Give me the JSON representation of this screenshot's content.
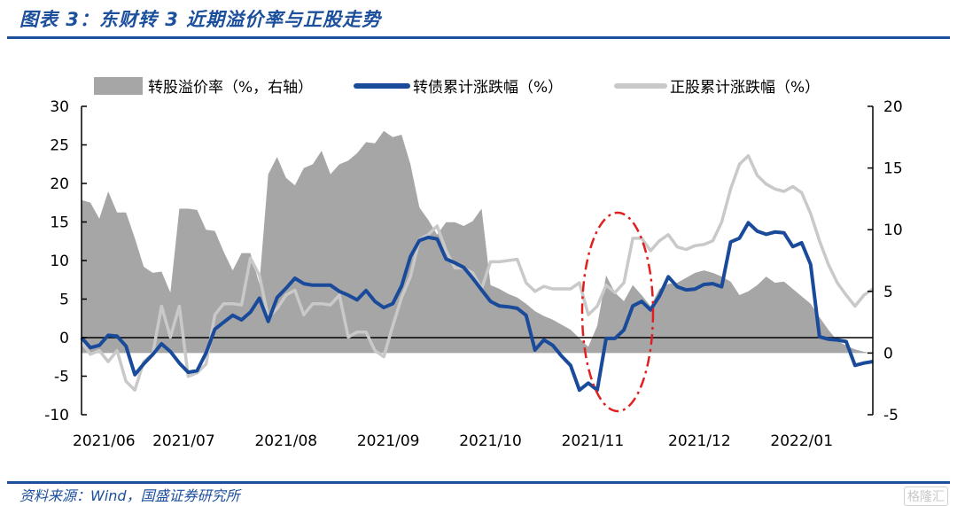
{
  "header": {
    "title": "图表 3：东财转 3 近期溢价率与正股走势"
  },
  "footer": {
    "source": "资料来源：Wind，国盛证券研究所",
    "watermark": "格隆汇"
  },
  "colors": {
    "premium": "#a6a6a6",
    "bond": "#1a4a9a",
    "stock": "#c9c9c9",
    "annotation": "#e02020",
    "accent": "#1c4f9c"
  },
  "chart_data": {
    "type": "line",
    "title": "东财转3近期溢价率与正股走势",
    "x_unit": "trading-day index",
    "index_step": 2,
    "x_range": [
      0,
      178
    ],
    "x_ticks": [
      {
        "label": "2021/06",
        "index": 0
      },
      {
        "label": "2021/07",
        "index": 23
      },
      {
        "label": "2021/08",
        "index": 46
      },
      {
        "label": "2021/09",
        "index": 69
      },
      {
        "label": "2021/10",
        "index": 92
      },
      {
        "label": "2021/11",
        "index": 115
      },
      {
        "label": "2021/12",
        "index": 139
      },
      {
        "label": "2022/01",
        "index": 162
      }
    ],
    "left_axis": {
      "range": [
        -10,
        30
      ],
      "ticks": [
        "30",
        "25",
        "20",
        "15",
        "10",
        "5",
        "0",
        "-5",
        "-10"
      ]
    },
    "right_axis": {
      "range": [
        -5,
        20
      ],
      "ticks": [
        "20",
        "15",
        "10",
        "5",
        "0",
        "-5"
      ]
    },
    "legend": {
      "placement": "top",
      "entries": [
        "转股溢价率（%，右轴）",
        "转债累计涨跌幅（%）",
        "正股累计涨跌幅（%）"
      ]
    },
    "series": [
      {
        "name": "转股溢价率（%，右轴）",
        "type": "area",
        "axis": "right",
        "values": [
          12.4,
          12.2,
          10.9,
          13.1,
          11.4,
          11.4,
          9.3,
          7.0,
          6.5,
          6.6,
          4.9,
          11.7,
          11.7,
          11.6,
          10.0,
          9.9,
          8.2,
          6.7,
          8.1,
          8.1,
          5.6,
          14.5,
          15.9,
          14.2,
          13.6,
          15.0,
          15.3,
          16.4,
          14.5,
          15.3,
          15.6,
          16.2,
          17.1,
          17.0,
          18.0,
          17.5,
          17.7,
          15.3,
          11.8,
          10.8,
          9.6,
          10.6,
          10.6,
          10.3,
          10.7,
          11.7,
          5.5,
          5.2,
          4.8,
          4.5,
          4.0,
          3.4,
          3.0,
          2.7,
          2.3,
          1.9,
          1.2,
          0.5,
          2.2,
          6.3,
          4.9,
          4.2,
          5.5,
          4.7,
          3.8,
          5.2,
          5.6,
          5.7,
          6.1,
          6.5,
          6.7,
          6.5,
          6.2,
          5.8,
          4.7,
          5.0,
          5.5,
          6.2,
          5.7,
          5.8,
          5.2,
          4.6,
          4.0,
          2.9,
          1.9,
          1.0,
          0.6,
          0.3,
          0.1,
          0.0
        ]
      },
      {
        "name": "转债累计涨跌幅（%）",
        "type": "line",
        "axis": "left",
        "values": [
          0,
          -1.3,
          -1.0,
          0.3,
          0.2,
          -1.1,
          -4.8,
          -3.4,
          -2.2,
          -0.8,
          -1.8,
          -3.3,
          -4.5,
          -4.3,
          -2.0,
          1.1,
          2.0,
          2.9,
          2.3,
          3.3,
          5.1,
          2.1,
          5.2,
          6.4,
          7.7,
          7.0,
          6.8,
          6.8,
          6.8,
          6.0,
          5.5,
          4.9,
          6.1,
          4.7,
          3.9,
          4.4,
          6.7,
          10.5,
          12.6,
          13.0,
          12.8,
          10.2,
          9.7,
          9.1,
          7.7,
          6.2,
          4.7,
          4.1,
          4.0,
          3.8,
          2.9,
          -1.6,
          -0.3,
          -1.0,
          -2.4,
          -3.6,
          -6.8,
          -5.9,
          -6.8,
          -0.1,
          -0.1,
          1.0,
          4.1,
          4.7,
          3.6,
          5.4,
          7.9,
          6.6,
          6.2,
          6.3,
          6.9,
          7.0,
          6.6,
          12.4,
          12.9,
          14.9,
          13.8,
          13.4,
          13.7,
          13.6,
          11.8,
          12.3,
          9.5,
          0.1,
          -0.2,
          -0.3,
          -0.5,
          -3.6,
          -3.3,
          -3.1
        ]
      },
      {
        "name": "正股累计涨跌幅（%）",
        "type": "line",
        "axis": "right",
        "values": [
          0.9,
          -0.1,
          0.2,
          -0.7,
          0.2,
          -2.3,
          -3.0,
          -0.7,
          -0.1,
          3.8,
          1.3,
          3.8,
          -1.9,
          -1.6,
          -0.9,
          3.1,
          4.0,
          4.0,
          3.9,
          7.7,
          6.3,
          2.9,
          3.6,
          4.7,
          5.1,
          3.1,
          4.0,
          4.0,
          3.9,
          4.7,
          1.3,
          1.7,
          1.7,
          0.2,
          -0.3,
          2.2,
          4.5,
          6.2,
          9.2,
          9.6,
          10.3,
          8.3,
          6.9,
          6.9,
          6.5,
          5.2,
          7.4,
          7.4,
          7.5,
          7.6,
          5.7,
          5.0,
          5.4,
          5.2,
          5.2,
          5.2,
          5.7,
          3.1,
          3.8,
          5.5,
          4.9,
          5.7,
          9.3,
          9.3,
          8.3,
          9.1,
          9.6,
          8.6,
          8.4,
          8.7,
          8.8,
          9.1,
          10.6,
          13.3,
          15.3,
          16.0,
          14.4,
          13.7,
          13.3,
          13.1,
          13.5,
          13.0,
          11.3,
          9.1,
          7.2,
          5.7,
          4.7,
          3.8,
          4.7,
          5.2
        ]
      }
    ],
    "annotations": [
      {
        "type": "dashed-ellipse",
        "around_index": [
          113,
          129
        ],
        "note": "highlight around 2021/11"
      }
    ]
  }
}
